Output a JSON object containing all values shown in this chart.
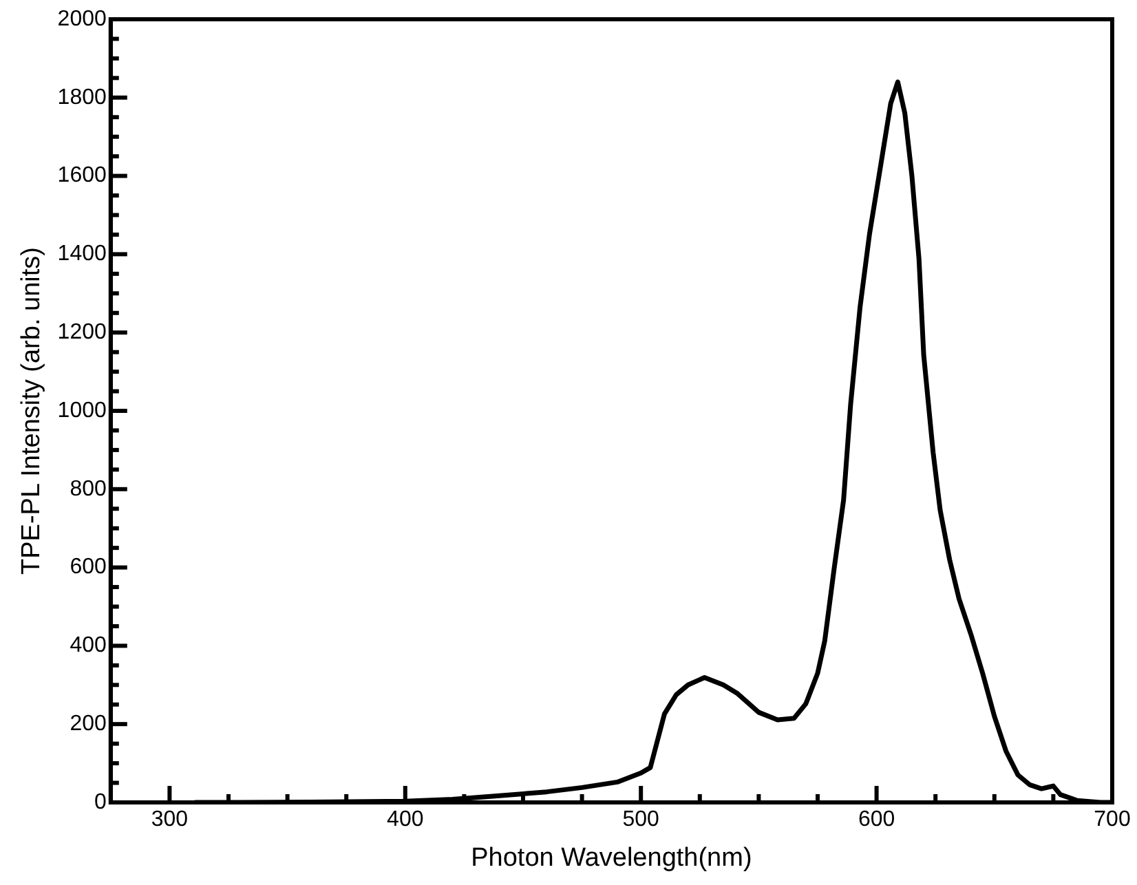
{
  "chart_data": {
    "type": "line",
    "xlabel": "Photon Wavelength(nm)",
    "ylabel": "TPE-PL Intensity (arb. units)",
    "xlim": [
      275,
      700
    ],
    "xticks": [
      300,
      {
        "value": 325,
        "label": null
      },
      {
        "value": 350,
        "label": null
      },
      {
        "value": 375,
        "label": null
      },
      400,
      {
        "value": 425,
        "label": null
      },
      {
        "value": 450,
        "label": null
      },
      {
        "value": 475,
        "label": null
      },
      500,
      {
        "value": 525,
        "label": null
      },
      {
        "value": 550,
        "label": null
      },
      {
        "value": 575,
        "label": null
      },
      600,
      {
        "value": 625,
        "label": null
      },
      {
        "value": 650,
        "label": null
      },
      {
        "value": 675,
        "label": null
      },
      700
    ],
    "ylim": [
      0,
      2000
    ],
    "yticks": [
      0,
      {
        "value": 50,
        "label": null
      },
      {
        "value": 100,
        "label": null
      },
      {
        "value": 150,
        "label": null
      },
      200,
      {
        "value": 250,
        "label": null
      },
      {
        "value": 300,
        "label": null
      },
      {
        "value": 350,
        "label": null
      },
      400,
      {
        "value": 450,
        "label": null
      },
      {
        "value": 500,
        "label": null
      },
      {
        "value": 550,
        "label": null
      },
      600,
      {
        "value": 650,
        "label": null
      },
      {
        "value": 700,
        "label": null
      },
      {
        "value": 750,
        "label": null
      },
      800,
      {
        "value": 850,
        "label": null
      },
      {
        "value": 900,
        "label": null
      },
      {
        "value": 950,
        "label": null
      },
      1000,
      {
        "value": 1050,
        "label": null
      },
      {
        "value": 1100,
        "label": null
      },
      {
        "value": 1150,
        "label": null
      },
      1200,
      {
        "value": 1250,
        "label": null
      },
      {
        "value": 1300,
        "label": null
      },
      {
        "value": 1350,
        "label": null
      },
      1400,
      {
        "value": 1450,
        "label": null
      },
      {
        "value": 1500,
        "label": null
      },
      {
        "value": 1550,
        "label": null
      },
      1600,
      {
        "value": 1650,
        "label": null
      },
      {
        "value": 1700,
        "label": null
      },
      {
        "value": 1750,
        "label": null
      },
      1800,
      {
        "value": 1850,
        "label": null
      },
      {
        "value": 1900,
        "label": null
      },
      {
        "value": 1950,
        "label": null
      },
      2000
    ],
    "grid": false,
    "legend": false,
    "marker": "none",
    "line_style": "solid",
    "series": [
      {
        "color": "#000000",
        "x": [
          311,
          330,
          360,
          400,
          420,
          440,
          460,
          475,
          490,
          500,
          504,
          510,
          515,
          520,
          527,
          535,
          541,
          550,
          558,
          565,
          570,
          575,
          578,
          582,
          586,
          589,
          593,
          597,
          602,
          606,
          609,
          612,
          615,
          618,
          620,
          624,
          627,
          631,
          635,
          640,
          645,
          650,
          655,
          660,
          665,
          670,
          675,
          678,
          685,
          695,
          700
        ],
        "values": [
          0,
          0,
          1,
          3,
          8,
          17,
          27,
          38,
          52,
          75,
          89,
          226,
          275,
          300,
          319,
          300,
          278,
          230,
          211,
          215,
          252,
          330,
          412,
          597,
          772,
          1017,
          1265,
          1451,
          1636,
          1785,
          1840,
          1760,
          1600,
          1388,
          1143,
          894,
          746,
          620,
          520,
          430,
          330,
          220,
          130,
          70,
          45,
          35,
          42,
          20,
          5,
          0,
          0
        ]
      }
    ]
  }
}
